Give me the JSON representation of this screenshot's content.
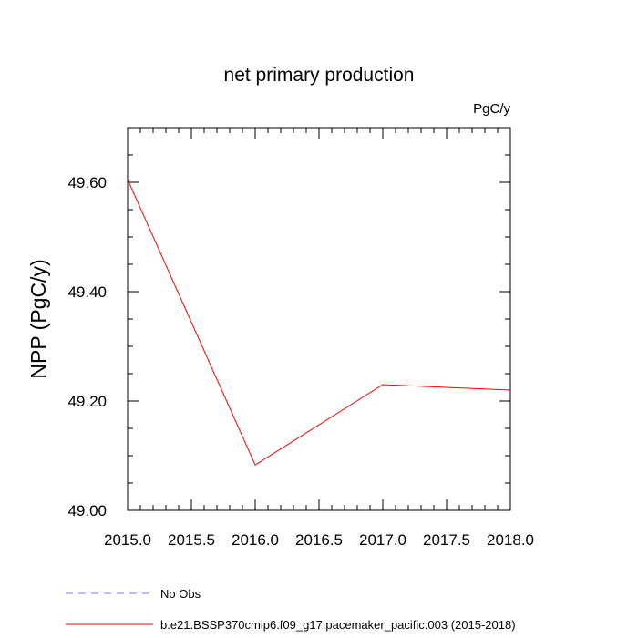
{
  "chart_data": {
    "type": "line",
    "title": "net primary production",
    "units": "PgC/y",
    "ylabel": "NPP  (PgC/y)",
    "xlabel": "",
    "xlim": [
      2015.0,
      2018.0
    ],
    "ylim": [
      49.0,
      49.7
    ],
    "x_ticks": [
      "2015.0",
      "2015.5",
      "2016.0",
      "2016.5",
      "2017.0",
      "2017.5",
      "2018.0"
    ],
    "y_ticks": [
      "49.00",
      "49.20",
      "49.40",
      "49.60"
    ],
    "grid": false,
    "legend_position": "bottom-left",
    "series": [
      {
        "name": "No Obs",
        "color": "#7b7bff",
        "dash": "dashed",
        "x": [],
        "y": []
      },
      {
        "name": "b.e21.BSSP370cmip6.f09_g17.pacemaker_pacific.003 (2015-2018)",
        "color": "#ff0000",
        "dash": "solid",
        "x": [
          2015.0,
          2016.0,
          2017.0,
          2018.0
        ],
        "y": [
          49.605,
          49.083,
          49.23,
          49.22
        ]
      }
    ]
  }
}
